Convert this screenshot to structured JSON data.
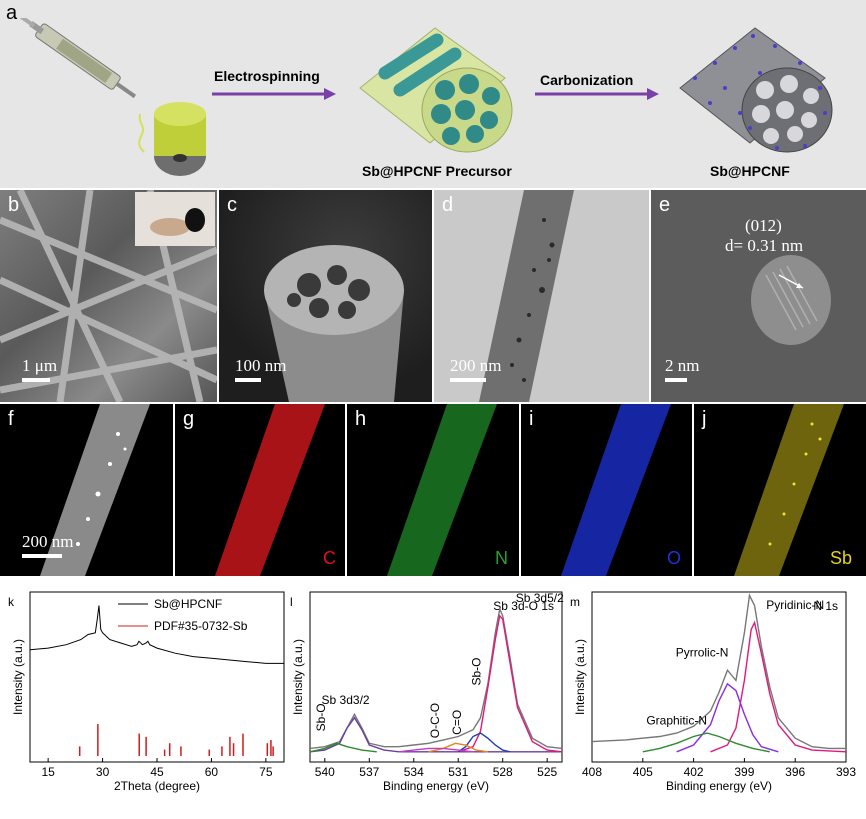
{
  "panel_a": {
    "label": "a",
    "step1": "Electrospinning",
    "step2": "Carbonization",
    "caption1": "Sb@HPCNF Precursor",
    "caption2": "Sb@HPCNF"
  },
  "sem_tem": {
    "b": {
      "label": "b",
      "scale": "1 μm"
    },
    "c": {
      "label": "c",
      "scale": "100 nm"
    },
    "d": {
      "label": "d",
      "scale": "200 nm"
    },
    "e": {
      "label": "e",
      "scale": "2 nm",
      "plane": "(012)",
      "spacing": "d= 0.31 nm"
    }
  },
  "mapping": {
    "f": {
      "label": "f",
      "scale": "200 nm"
    },
    "g": {
      "label": "g",
      "element": "C",
      "color": "#e01010"
    },
    "h": {
      "label": "h",
      "element": "N",
      "color": "#2aa02a"
    },
    "i": {
      "label": "i",
      "element": "O",
      "color": "#1e32d8"
    },
    "j": {
      "label": "j",
      "element": "Sb",
      "color": "#e6d21a"
    }
  },
  "chart_data": [
    {
      "type": "line",
      "label": "k",
      "xlabel": "2Theta (degree)",
      "ylabel": "Intensity (a.u.)",
      "xlim": [
        10,
        80
      ],
      "xticks": [
        "15",
        "30",
        "45",
        "60",
        "75"
      ],
      "legend": [
        "Sb@HPCNF",
        "PDF#35-0732-Sb"
      ],
      "legend_placement": "top-right",
      "series": [
        {
          "name": "Sb@HPCNF",
          "x": [
            10,
            15,
            20,
            24,
            26,
            28,
            28.6,
            29,
            29.5,
            30,
            32,
            35,
            38,
            39.5,
            40,
            41,
            42,
            42.5,
            43,
            45,
            50,
            55,
            60,
            65,
            70,
            75,
            80
          ],
          "y": [
            66,
            67,
            69,
            72,
            75,
            76,
            85,
            92,
            78,
            76,
            72,
            70,
            68,
            69,
            71,
            69,
            70,
            71,
            69,
            67,
            64,
            62,
            61,
            60,
            59,
            58,
            58
          ]
        },
        {
          "name": "PDF#35-0732-Sb",
          "x": [
            23.7,
            28.7,
            40.1,
            42.0,
            47.1,
            48.5,
            51.6,
            59.4,
            62.9,
            65.1,
            66.1,
            68.7,
            75.4,
            76.4,
            77.0
          ],
          "y": [
            3,
            10,
            7,
            6,
            2,
            4,
            3,
            2,
            3,
            6,
            4,
            7,
            4,
            5,
            3
          ]
        }
      ]
    },
    {
      "type": "line",
      "label": "l",
      "title": "Sb 3d-O 1s",
      "xlabel": "Binding energy (eV)",
      "ylabel": "Intensity (a.u.)",
      "xlim": [
        541,
        524
      ],
      "xticks": [
        "540",
        "537",
        "534",
        "531",
        "528",
        "525"
      ],
      "annotations": [
        "Sb-O",
        "Sb 3d3/2",
        "O-C-O",
        "C=O",
        "Sb-O",
        "Sb 3d5/2"
      ],
      "series": [
        {
          "name": "raw",
          "color": "#777777",
          "x": [
            541,
            540,
            539,
            538.5,
            538,
            537.5,
            537,
            536,
            535,
            534,
            533,
            532,
            531,
            530,
            529.5,
            529,
            528.5,
            528.2,
            528,
            527.5,
            527,
            526,
            525,
            524
          ],
          "y": [
            2,
            3,
            6,
            14,
            22,
            14,
            5,
            3,
            3,
            4,
            5,
            7,
            9,
            13,
            20,
            40,
            70,
            84,
            80,
            55,
            28,
            8,
            3,
            2
          ]
        },
        {
          "name": "Sb 3d3/2",
          "color": "#6b3fa0",
          "x": [
            541,
            540,
            539,
            538.5,
            538,
            537.5,
            537,
            536,
            535,
            524
          ],
          "y": [
            0,
            1,
            5,
            14,
            20,
            13,
            4,
            1,
            0,
            0
          ]
        },
        {
          "name": "Sb 3d5/2",
          "color": "#e0197d",
          "x": [
            531,
            530,
            529.5,
            529,
            528.5,
            528.2,
            528,
            527.5,
            527,
            526,
            525,
            524
          ],
          "y": [
            0,
            3,
            12,
            38,
            66,
            80,
            78,
            52,
            26,
            6,
            1,
            0
          ]
        },
        {
          "name": "Sb-O",
          "color": "#1f3fb8",
          "x": [
            531,
            530.5,
            530,
            529.5,
            529,
            528.5,
            528,
            527.5
          ],
          "y": [
            0,
            3,
            9,
            11,
            8,
            4,
            1,
            0
          ]
        },
        {
          "name": "Sb-O (3d3/2)",
          "color": "#2e8b2e",
          "x": [
            541,
            540,
            539.2,
            538.5,
            537.5,
            536.5
          ],
          "y": [
            0,
            2,
            5,
            3,
            1,
            0
          ]
        },
        {
          "name": "C=O",
          "color": "#e8841a",
          "x": [
            533,
            532,
            531.2,
            530.5,
            529.8,
            529
          ],
          "y": [
            0,
            2,
            5,
            4,
            1,
            0
          ]
        },
        {
          "name": "O-C-O",
          "color": "#c23cc2",
          "x": [
            535,
            534,
            533,
            532,
            531,
            530
          ],
          "y": [
            0,
            1,
            2,
            2,
            1,
            0
          ]
        }
      ]
    },
    {
      "type": "line",
      "label": "m",
      "title": "N 1s",
      "xlabel": "Binding energy (eV)",
      "ylabel": "Intensity (a.u.)",
      "xlim": [
        408,
        393
      ],
      "xticks": [
        "408",
        "405",
        "402",
        "399",
        "396",
        "393"
      ],
      "annotations": [
        "Graphitic-N",
        "Pyrrolic-N",
        "Pyridinic-N"
      ],
      "series": [
        {
          "name": "raw",
          "color": "#777777",
          "x": [
            408,
            406,
            404,
            403,
            402,
            401,
            400.5,
            400,
            399.5,
            399,
            398.7,
            398.4,
            398,
            397.5,
            397,
            396,
            395,
            394,
            393
          ],
          "y": [
            6,
            7,
            9,
            11,
            15,
            24,
            35,
            48,
            42,
            70,
            92,
            86,
            62,
            38,
            20,
            8,
            3,
            2,
            2
          ]
        },
        {
          "name": "Pyridinic-N",
          "color": "#e0197d",
          "x": [
            401,
            400,
            399.5,
            399,
            398.6,
            398.4,
            398,
            397.5,
            397,
            396,
            395,
            393
          ],
          "y": [
            0,
            4,
            14,
            42,
            72,
            76,
            58,
            34,
            16,
            4,
            1,
            0
          ]
        },
        {
          "name": "Pyrrolic-N",
          "color": "#8a2be2",
          "x": [
            403,
            402,
            401,
            400.5,
            400,
            399.5,
            399,
            398.5,
            398,
            397
          ],
          "y": [
            0,
            4,
            16,
            30,
            40,
            36,
            22,
            10,
            3,
            0
          ]
        },
        {
          "name": "Graphitic-N",
          "color": "#2e8b2e",
          "x": [
            405,
            404,
            403,
            402,
            401.2,
            400.5,
            399.5,
            398.5,
            397.5
          ],
          "y": [
            0,
            2,
            5,
            9,
            11,
            9,
            5,
            2,
            0
          ]
        }
      ]
    }
  ]
}
